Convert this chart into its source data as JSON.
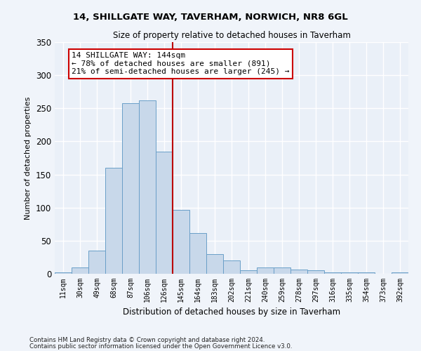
{
  "title1": "14, SHILLGATE WAY, TAVERHAM, NORWICH, NR8 6GL",
  "title2": "Size of property relative to detached houses in Taverham",
  "xlabel": "Distribution of detached houses by size in Taverham",
  "ylabel": "Number of detached properties",
  "bar_labels": [
    "11sqm",
    "30sqm",
    "49sqm",
    "68sqm",
    "87sqm",
    "106sqm",
    "126sqm",
    "145sqm",
    "164sqm",
    "183sqm",
    "202sqm",
    "221sqm",
    "240sqm",
    "259sqm",
    "278sqm",
    "297sqm",
    "316sqm",
    "335sqm",
    "354sqm",
    "373sqm",
    "392sqm"
  ],
  "bar_values": [
    2,
    10,
    35,
    160,
    258,
    262,
    185,
    97,
    62,
    30,
    20,
    5,
    10,
    10,
    6,
    5,
    2,
    2,
    2,
    0,
    2
  ],
  "bar_color": "#c8d8ea",
  "bar_edge_color": "#6a9fc8",
  "vline_index": 7,
  "vline_color": "#bb0000",
  "annotation_text": "14 SHILLGATE WAY: 144sqm\n← 78% of detached houses are smaller (891)\n21% of semi-detached houses are larger (245) →",
  "annotation_box_color": "#ffffff",
  "annotation_box_edge": "#cc0000",
  "ylim": [
    0,
    350
  ],
  "yticks": [
    0,
    50,
    100,
    150,
    200,
    250,
    300,
    350
  ],
  "bg_color": "#eaf0f8",
  "grid_color": "#ffffff",
  "fig_bg_color": "#f0f4fa",
  "footer1": "Contains HM Land Registry data © Crown copyright and database right 2024.",
  "footer2": "Contains public sector information licensed under the Open Government Licence v3.0."
}
